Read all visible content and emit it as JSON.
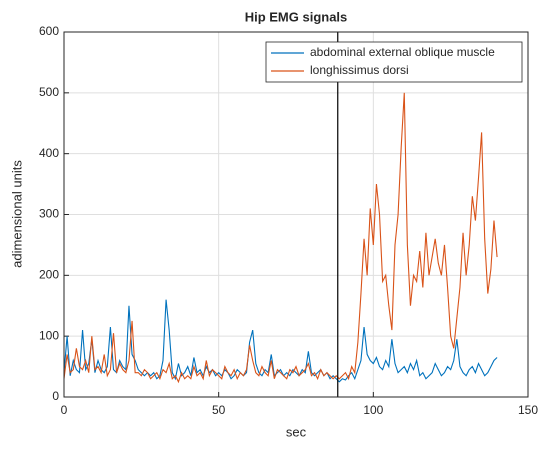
{
  "chart_data": {
    "type": "line",
    "title": "Hip EMG signals",
    "xlabel": "sec",
    "ylabel": "adimensional units",
    "x": [
      0,
      1,
      2,
      3,
      4,
      5,
      6,
      7,
      8,
      9,
      10,
      11,
      12,
      13,
      14,
      15,
      16,
      17,
      18,
      19,
      20,
      21,
      22,
      23,
      24,
      25,
      26,
      27,
      28,
      29,
      30,
      31,
      32,
      33,
      34,
      35,
      36,
      37,
      38,
      39,
      40,
      41,
      42,
      43,
      44,
      45,
      46,
      47,
      48,
      49,
      50,
      51,
      52,
      53,
      54,
      55,
      56,
      57,
      58,
      59,
      60,
      61,
      62,
      63,
      64,
      65,
      66,
      67,
      68,
      69,
      70,
      71,
      72,
      73,
      74,
      75,
      76,
      77,
      78,
      79,
      80,
      81,
      82,
      83,
      84,
      85,
      86,
      87,
      88,
      89,
      90,
      91,
      92,
      93,
      94,
      95,
      96,
      97,
      98,
      99,
      100,
      101,
      102,
      103,
      104,
      105,
      106,
      107,
      108,
      109,
      110,
      111,
      112,
      113,
      114,
      115,
      116,
      117,
      118,
      119,
      120,
      121,
      122,
      123,
      124,
      125,
      126,
      127,
      128,
      129,
      130,
      131,
      132,
      133,
      134,
      135,
      136,
      137,
      138,
      139,
      140
    ],
    "series": [
      {
        "name": "abdominal external oblique muscle",
        "color": "#0072bd",
        "values": [
          40,
          100,
          35,
          60,
          45,
          40,
          110,
          45,
          55,
          95,
          40,
          60,
          45,
          40,
          50,
          115,
          45,
          40,
          60,
          50,
          45,
          150,
          70,
          60,
          45,
          40,
          35,
          40,
          35,
          40,
          30,
          35,
          60,
          160,
          110,
          40,
          30,
          55,
          35,
          40,
          50,
          35,
          65,
          40,
          45,
          35,
          50,
          40,
          45,
          35,
          40,
          35,
          45,
          40,
          30,
          35,
          45,
          40,
          35,
          40,
          90,
          110,
          55,
          40,
          35,
          45,
          40,
          70,
          35,
          40,
          45,
          35,
          40,
          35,
          45,
          40,
          35,
          45,
          40,
          75,
          40,
          35,
          40,
          45,
          35,
          40,
          30,
          35,
          30,
          25,
          30,
          28,
          35,
          40,
          30,
          45,
          60,
          115,
          70,
          60,
          55,
          65,
          50,
          45,
          60,
          50,
          95,
          55,
          40,
          45,
          50,
          40,
          55,
          45,
          60,
          35,
          40,
          30,
          35,
          40,
          55,
          45,
          35,
          40,
          50,
          45,
          60,
          95,
          50,
          40,
          35,
          45,
          50,
          40,
          55,
          45,
          35,
          40,
          50,
          60,
          65
        ]
      },
      {
        "name": "longhissimus dorsi",
        "color": "#d95319",
        "values": [
          30,
          70,
          40,
          45,
          80,
          50,
          45,
          60,
          40,
          100,
          45,
          50,
          40,
          70,
          35,
          45,
          105,
          40,
          55,
          45,
          40,
          60,
          125,
          40,
          40,
          35,
          45,
          40,
          30,
          35,
          40,
          30,
          45,
          40,
          55,
          30,
          35,
          25,
          40,
          30,
          35,
          30,
          50,
          35,
          40,
          30,
          60,
          35,
          45,
          40,
          35,
          30,
          50,
          40,
          35,
          45,
          30,
          40,
          35,
          45,
          85,
          60,
          40,
          35,
          50,
          40,
          35,
          60,
          30,
          45,
          40,
          35,
          30,
          45,
          40,
          50,
          35,
          40,
          45,
          55,
          35,
          40,
          30,
          45,
          35,
          40,
          35,
          30,
          35,
          30,
          35,
          40,
          30,
          50,
          40,
          90,
          170,
          260,
          200,
          310,
          250,
          350,
          300,
          190,
          200,
          150,
          110,
          250,
          300,
          410,
          500,
          250,
          150,
          200,
          190,
          240,
          180,
          270,
          200,
          230,
          260,
          220,
          200,
          250,
          180,
          100,
          80,
          130,
          180,
          270,
          200,
          250,
          330,
          290,
          360,
          435,
          260,
          170,
          210,
          290,
          230
        ]
      }
    ],
    "vline": 88.5,
    "vline_color": "#000000",
    "xlim": [
      0,
      150
    ],
    "xticks": [
      0,
      50,
      100,
      150
    ],
    "ylim": [
      0,
      600
    ],
    "yticks": [
      0,
      100,
      200,
      300,
      400,
      500,
      600
    ],
    "grid": true,
    "legend": "northeast"
  }
}
